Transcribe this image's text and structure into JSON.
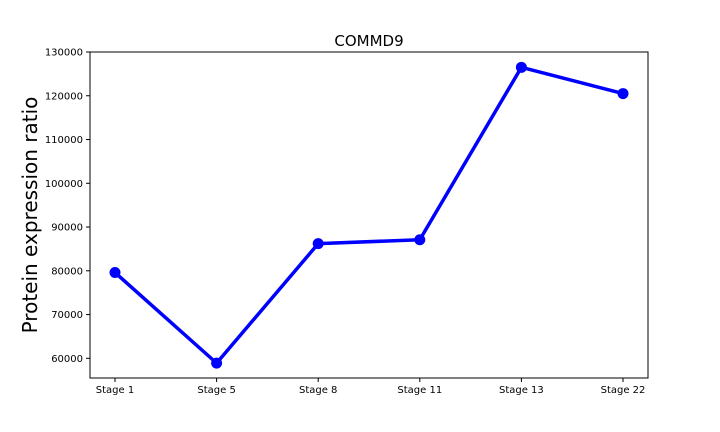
{
  "chart_data": {
    "type": "line",
    "title": "COMMD9",
    "xlabel": "",
    "ylabel": "Protein expression ratio",
    "categories": [
      "Stage 1",
      "Stage 5",
      "Stage 8",
      "Stage 11",
      "Stage 13",
      "Stage 22"
    ],
    "series": [
      {
        "values": [
          79600,
          58900,
          86200,
          87100,
          126500,
          120500
        ],
        "color": "#0000ff"
      }
    ],
    "ylim": [
      55500,
      130000
    ],
    "yticks": [
      60000,
      70000,
      80000,
      90000,
      100000,
      110000,
      120000,
      130000
    ],
    "grid": false,
    "legend": "none"
  }
}
